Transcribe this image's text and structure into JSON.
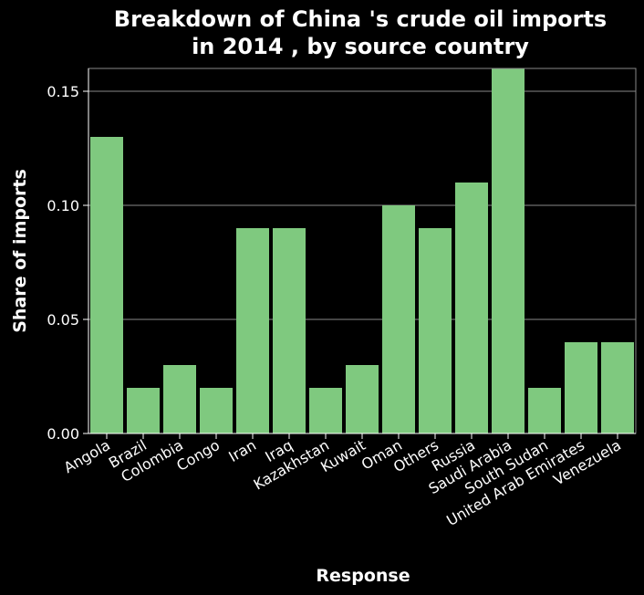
{
  "chart_data": {
    "type": "bar",
    "title_lines": [
      "Breakdown of China 's crude oil imports",
      "in 2014 , by source country"
    ],
    "xlabel": "Response",
    "ylabel": "Share of imports",
    "categories": [
      "Angola",
      "Brazil",
      "Colombia",
      "Congo",
      "Iran",
      "Iraq",
      "Kazakhstan",
      "Kuwait",
      "Oman",
      "Others",
      "Russia",
      "Saudi Arabia",
      "South Sudan",
      "United Arab Emirates",
      "Venezuela"
    ],
    "values": [
      0.13,
      0.02,
      0.03,
      0.02,
      0.09,
      0.09,
      0.02,
      0.03,
      0.1,
      0.09,
      0.11,
      0.16,
      0.02,
      0.04,
      0.04
    ],
    "ylim": [
      0,
      0.16
    ],
    "yticks": [
      "0.00",
      "0.05",
      "0.10",
      "0.15"
    ],
    "grid": true,
    "colors": {
      "background": "#000000",
      "bar": "#7fc97f",
      "text": "#ffffff",
      "grid": "#888888"
    }
  }
}
